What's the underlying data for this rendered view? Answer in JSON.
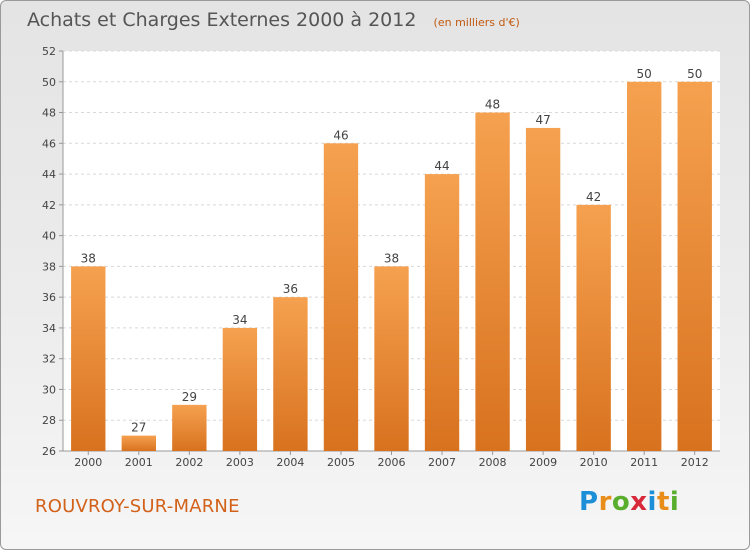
{
  "header": {
    "title": "Achats et Charges Externes 2000 à 2012",
    "unit": "(en milliers d'€)"
  },
  "footer": {
    "place": "ROUVROY-SUR-MARNE",
    "logo_text": "Proxiti"
  },
  "colors": {
    "bar_top": "#f5a14f",
    "bar_bottom": "#d8721f",
    "grid": "#d8d8d8",
    "axis_text": "#444444",
    "accent": "#d2611a"
  },
  "chart_data": {
    "type": "bar",
    "title": "Achats et Charges Externes 2000 à 2012",
    "subtitle": "(en milliers d'€)",
    "xlabel": "",
    "ylabel": "",
    "categories": [
      "2000",
      "2001",
      "2002",
      "2003",
      "2004",
      "2005",
      "2006",
      "2007",
      "2008",
      "2009",
      "2010",
      "2011",
      "2012"
    ],
    "values": [
      38,
      27,
      29,
      34,
      36,
      46,
      38,
      44,
      48,
      47,
      42,
      50,
      50
    ],
    "ylim": [
      26,
      52
    ],
    "yticks": [
      26,
      28,
      30,
      32,
      34,
      36,
      38,
      40,
      42,
      44,
      46,
      48,
      50,
      52
    ],
    "grid": true,
    "legend": "none"
  }
}
